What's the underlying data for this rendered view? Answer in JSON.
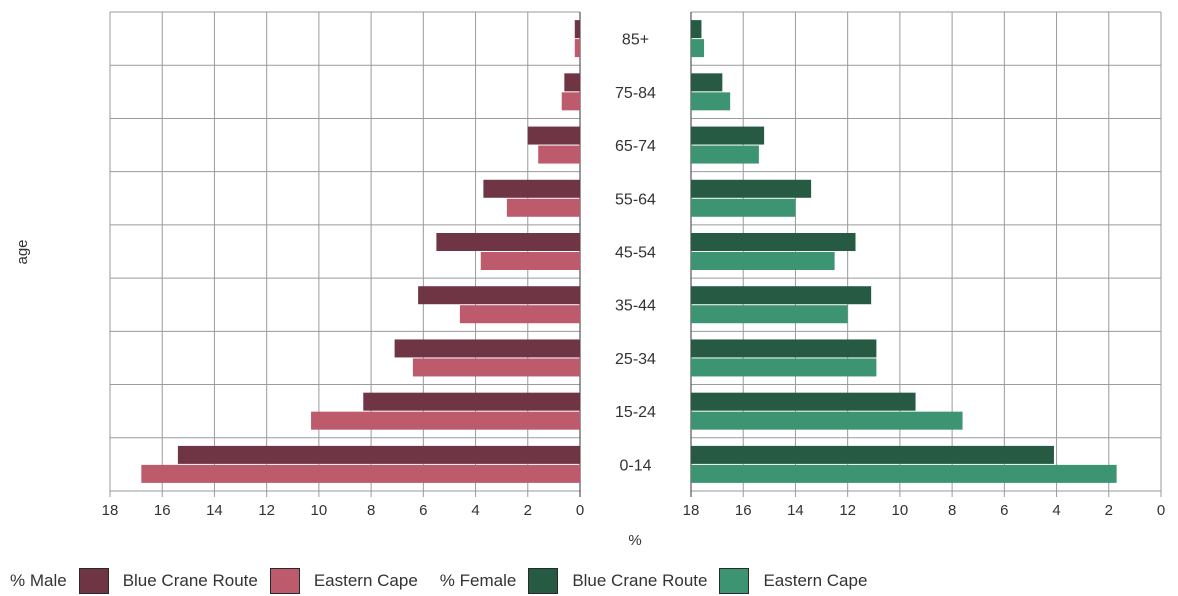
{
  "chart_data": {
    "type": "bar",
    "ylabel": "age",
    "xlabel": "%",
    "categories": [
      "85+",
      "75-84",
      "65-74",
      "55-64",
      "45-54",
      "35-44",
      "25-34",
      "15-24",
      "0-14"
    ],
    "x_ticks": [
      "18",
      "16",
      "14",
      "12",
      "10",
      "8",
      "6",
      "4",
      "2",
      "0"
    ],
    "xlim": [
      0,
      18
    ],
    "male": {
      "legend_label": "% Male",
      "series": [
        {
          "name": "Blue Crane Route",
          "color": "#6f3545",
          "values": [
            0.2,
            0.6,
            2.0,
            3.7,
            5.5,
            6.2,
            7.1,
            8.3,
            15.4
          ]
        },
        {
          "name": "Eastern Cape",
          "color": "#bd5a6b",
          "values": [
            0.2,
            0.7,
            1.6,
            2.8,
            3.8,
            4.6,
            6.4,
            10.3,
            16.8
          ]
        }
      ]
    },
    "female": {
      "legend_label": "% Female",
      "series": [
        {
          "name": "Blue Crane Route",
          "color": "#275a43",
          "values": [
            0.4,
            1.2,
            2.8,
            4.6,
            6.3,
            6.9,
            7.1,
            8.6,
            13.9
          ]
        },
        {
          "name": "Eastern Cape",
          "color": "#3d9472",
          "values": [
            0.5,
            1.5,
            2.6,
            4.0,
            5.5,
            6.0,
            7.1,
            10.4,
            16.3
          ]
        }
      ]
    },
    "grid": true
  }
}
